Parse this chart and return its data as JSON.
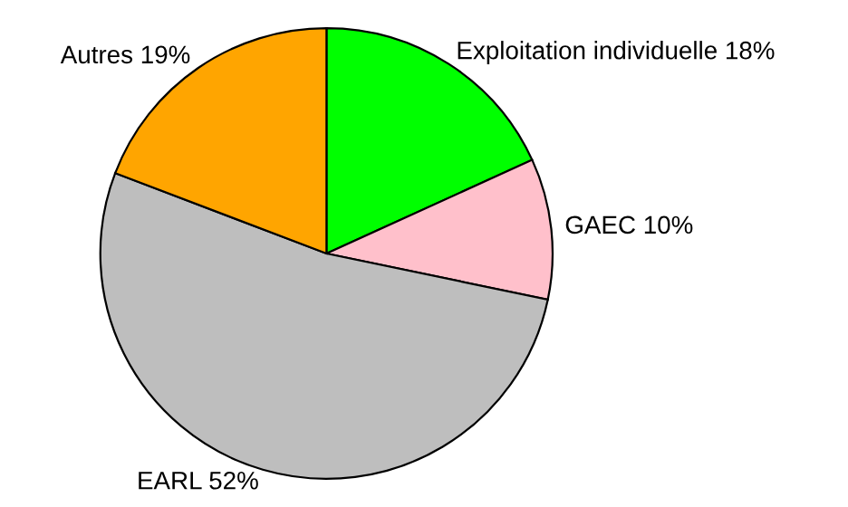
{
  "chart_data": {
    "type": "pie",
    "categories": [
      "Exploitation individuelle",
      "GAEC",
      "EARL",
      "Autres"
    ],
    "values": [
      18,
      10,
      52,
      19
    ],
    "value_labels": [
      "18%",
      "10%",
      "52%",
      "19%"
    ],
    "colors": [
      "#00ff00",
      "#ffc0cb",
      "#bebebe",
      "#ffa500"
    ]
  }
}
